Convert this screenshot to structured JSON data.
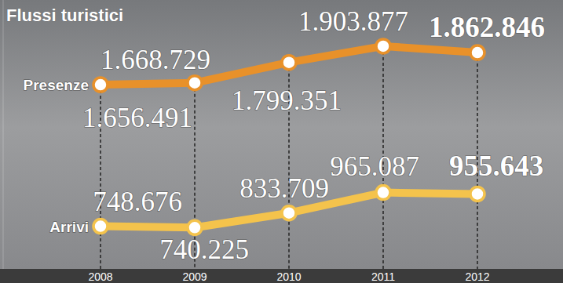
{
  "chart_data": {
    "type": "line",
    "title": "Flussi turistici",
    "categories": [
      "2008",
      "2009",
      "2010",
      "2011",
      "2012"
    ],
    "series": [
      {
        "name": "Presenze",
        "color": "#e8912a",
        "values": [
          1656491,
          1668729,
          1799351,
          1903877,
          1862846
        ],
        "value_labels": [
          "1.656.491",
          "1.668.729",
          "1.799.351",
          "1.903.877",
          "1.862.846"
        ]
      },
      {
        "name": "Arrivi",
        "color": "#f4c34c",
        "values": [
          748676,
          740225,
          833709,
          965087,
          955643
        ],
        "value_labels": [
          "748.676",
          "740.225",
          "833.709",
          "965.087",
          "955.643"
        ]
      }
    ],
    "ylim": [
      450000,
      2200000
    ],
    "yticks": [],
    "tick_labels": "x",
    "data_labels": true,
    "marker": "circle",
    "grid": false
  }
}
